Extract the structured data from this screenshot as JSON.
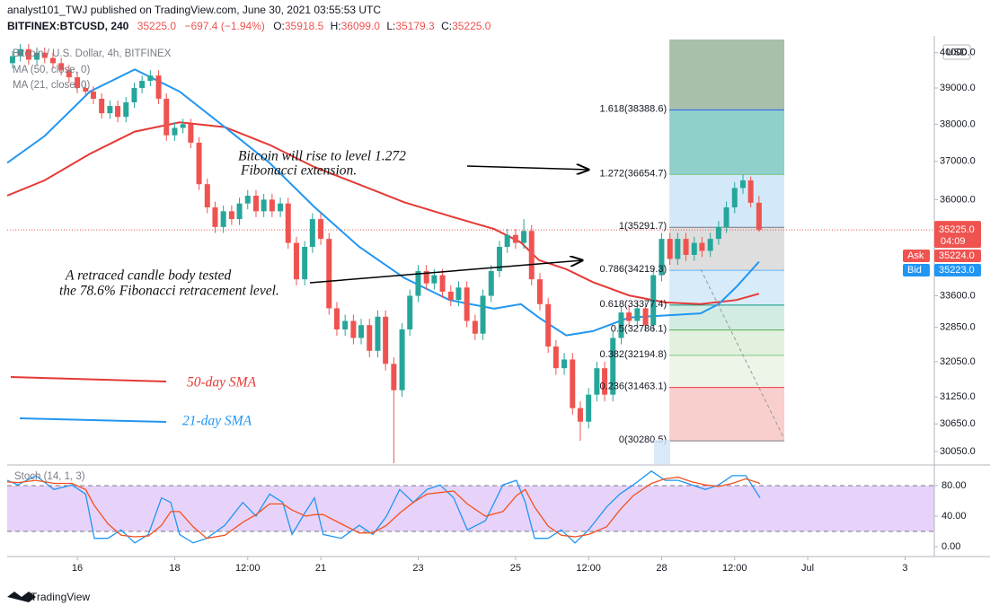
{
  "header": {
    "publisher": "analyst101_TWJ published on TradingView.com, June 30, 2021 03:55:53 UTC",
    "symbol": "BITFINEX:BTCUSD, 240",
    "last": "35225.0",
    "change": "−697.4 (−1.94%)",
    "ohlc": [
      {
        "key": "O:",
        "value": "35918.5"
      },
      {
        "key": "H:",
        "value": "36099.0"
      },
      {
        "key": "L:",
        "value": "35179.3"
      },
      {
        "key": "C:",
        "value": "35225.0"
      }
    ]
  },
  "legend": {
    "title": "Bitcoin / U.S. Dollar, 4h, BITFINEX",
    "ma50": "MA (50, close, 0)",
    "ma21": "MA (21, close, 0)"
  },
  "footer": "TradingView",
  "chart_data": {
    "type": "candlestick",
    "log_scale": true,
    "up_color": "#26a69a",
    "down_color": "#ef5350",
    "xlim": [
      14.56,
      33.6
    ],
    "xticks": [
      16,
      18,
      {
        "value": 19.5,
        "label": "12:00"
      },
      21,
      23,
      25,
      {
        "value": 26.5,
        "label": "12:00"
      },
      28,
      {
        "value": 29.5,
        "label": "12:00"
      },
      {
        "value": 31,
        "label": "Jul"
      },
      {
        "value": 33,
        "label": "3"
      }
    ],
    "ylim": [
      29780,
      40380
    ],
    "yticks": [
      {
        "value": 40000,
        "label": "40000.0"
      },
      {
        "value": 39000,
        "label": "39000.0"
      },
      {
        "value": 38000,
        "label": "38000.0"
      },
      {
        "value": 37000,
        "label": "37000.0"
      },
      {
        "value": 36000,
        "label": "36000.0"
      },
      {
        "value": 33600,
        "label": "33600.0"
      },
      {
        "value": 32850,
        "label": "32850.0"
      },
      {
        "value": 32050,
        "label": "32050.0"
      },
      {
        "value": 31250,
        "label": "31250.0"
      },
      {
        "value": 30650,
        "label": "30650.0"
      },
      {
        "value": 30050,
        "label": "30050.0"
      }
    ],
    "currency": "USD",
    "x": [
      14.67,
      14.83,
      15,
      15.17,
      15.33,
      15.5,
      15.67,
      15.83,
      16,
      16.17,
      16.33,
      16.5,
      16.67,
      16.83,
      17,
      17.17,
      17.33,
      17.5,
      17.67,
      17.83,
      18,
      18.17,
      18.33,
      18.5,
      18.67,
      18.83,
      19,
      19.17,
      19.33,
      19.5,
      19.67,
      19.83,
      20,
      20.17,
      20.33,
      20.5,
      20.67,
      20.83,
      21,
      21.17,
      21.33,
      21.5,
      21.67,
      21.83,
      22,
      22.17,
      22.33,
      22.5,
      22.67,
      22.83,
      23,
      23.17,
      23.33,
      23.5,
      23.67,
      23.83,
      24,
      24.17,
      24.33,
      24.5,
      24.67,
      24.83,
      25,
      25.17,
      25.33,
      25.5,
      25.67,
      25.83,
      26,
      26.17,
      26.33,
      26.5,
      26.67,
      26.83,
      27,
      27.17,
      27.33,
      27.5,
      27.67,
      27.83,
      28,
      28.17,
      28.33,
      28.5,
      28.67,
      28.83,
      29,
      29.17,
      29.33,
      29.5,
      29.67,
      29.83,
      30
    ],
    "open": [
      39700,
      39900,
      40100,
      39800,
      40000,
      39850,
      39700,
      39500,
      39300,
      39000,
      38900,
      38700,
      38300,
      38500,
      38200,
      38600,
      39000,
      39200,
      39350,
      38700,
      37700,
      37900,
      38000,
      37500,
      36400,
      35800,
      35300,
      35700,
      35500,
      35900,
      36100,
      35700,
      36000,
      35700,
      35900,
      34900,
      34000,
      34800,
      35500,
      35000,
      33300,
      32800,
      33000,
      32600,
      32900,
      32300,
      33100,
      32000,
      31400,
      32800,
      33600,
      34200,
      33900,
      34100,
      33700,
      33500,
      33800,
      33000,
      32700,
      33600,
      34200,
      34800,
      35100,
      34900,
      35200,
      34000,
      33400,
      32400,
      31900,
      32100,
      31000,
      30700,
      31300,
      31900,
      31300,
      32600,
      33200,
      33000,
      33300,
      32900,
      34100,
      35000,
      34500,
      35000,
      34600,
      34900,
      34700,
      35000,
      35300,
      35800,
      36300,
      36500,
      35918.5
    ],
    "high": [
      40050,
      40250,
      40250,
      40150,
      40150,
      40000,
      39850,
      39650,
      39450,
      39150,
      39050,
      38850,
      38650,
      38650,
      38750,
      39150,
      39350,
      39500,
      39500,
      38850,
      38050,
      38150,
      38150,
      37650,
      36550,
      35950,
      35850,
      35850,
      36050,
      36250,
      36250,
      36150,
      36150,
      36050,
      36050,
      35050,
      34950,
      35650,
      35650,
      35150,
      33450,
      33150,
      33150,
      33050,
      33050,
      33250,
      33250,
      32150,
      32950,
      33750,
      34350,
      34350,
      34250,
      34250,
      33850,
      33950,
      33950,
      33150,
      33750,
      34350,
      34950,
      35250,
      35250,
      35500,
      35350,
      34150,
      33550,
      32550,
      32250,
      32250,
      31150,
      31450,
      32050,
      32050,
      32750,
      33350,
      33350,
      33450,
      33450,
      34250,
      35150,
      35150,
      35150,
      35150,
      35050,
      35050,
      35150,
      35450,
      35950,
      36450,
      36650,
      36600,
      36099
    ],
    "low": [
      39550,
      39750,
      39650,
      39650,
      39700,
      39550,
      39350,
      39150,
      38850,
      38750,
      38550,
      38150,
      38150,
      38050,
      38050,
      38450,
      38850,
      39050,
      38550,
      37550,
      37550,
      37750,
      37350,
      36250,
      35650,
      35150,
      35150,
      35350,
      35350,
      35750,
      35550,
      35550,
      35550,
      35550,
      34750,
      33850,
      33850,
      34650,
      34850,
      33150,
      32650,
      32650,
      32450,
      32450,
      32150,
      32150,
      31850,
      29800,
      31250,
      32650,
      33450,
      33750,
      33750,
      33550,
      33350,
      33350,
      32850,
      32550,
      32550,
      33450,
      34050,
      34650,
      34750,
      34750,
      33850,
      33250,
      32250,
      31750,
      31750,
      30850,
      30280.5,
      30550,
      31150,
      31150,
      31150,
      32450,
      32850,
      32850,
      32750,
      32750,
      33950,
      34350,
      34350,
      34450,
      34450,
      34550,
      34550,
      34850,
      35150,
      35650,
      36150,
      35800,
      35179.3
    ],
    "close": [
      39900,
      40100,
      39800,
      40000,
      39850,
      39700,
      39500,
      39300,
      39000,
      38900,
      38700,
      38300,
      38500,
      38200,
      38600,
      39000,
      39200,
      39350,
      38700,
      37700,
      37900,
      38000,
      37500,
      36400,
      35800,
      35300,
      35700,
      35500,
      35900,
      36100,
      35700,
      36000,
      35700,
      35900,
      34900,
      34000,
      34800,
      35500,
      35000,
      33300,
      32800,
      33000,
      32600,
      32900,
      32300,
      33100,
      32000,
      31400,
      32800,
      33600,
      34200,
      33900,
      34100,
      33700,
      33500,
      33800,
      33000,
      32700,
      33600,
      34200,
      34800,
      35100,
      34900,
      35200,
      34000,
      33400,
      32400,
      31900,
      32100,
      31000,
      30700,
      31300,
      31900,
      31300,
      32600,
      33200,
      33000,
      33300,
      32900,
      34100,
      35000,
      34500,
      35000,
      34600,
      34900,
      34700,
      35000,
      35300,
      35800,
      36300,
      36500,
      35918.5,
      35225
    ],
    "series": [
      {
        "name": "50-day SMA",
        "color": "#e53935",
        "x": [
          14.56,
          15.33,
          16.26,
          17.18,
          18.1,
          19.03,
          19.95,
          20.87,
          21.79,
          22.72,
          23.64,
          24.56,
          25.11,
          25.48,
          26.04,
          26.59,
          27.33,
          28.07,
          28.8,
          29.54,
          30
        ],
        "values": [
          36100,
          36500,
          37200,
          37800,
          38050,
          37920,
          37440,
          36850,
          36390,
          35930,
          35580,
          35250,
          34910,
          34470,
          34250,
          33930,
          33610,
          33440,
          33400,
          33500,
          33650
        ]
      },
      {
        "name": "21-day SMA",
        "color": "#2196f3",
        "x": [
          14.56,
          15.33,
          16.26,
          17.18,
          18.1,
          19.03,
          19.95,
          20.87,
          21.79,
          22.72,
          23.64,
          24.56,
          25.11,
          25.48,
          26.04,
          26.59,
          27.33,
          28.25,
          28.8,
          29.17,
          29.54,
          30
        ],
        "values": [
          36960,
          37680,
          38900,
          39520,
          38900,
          37920,
          36960,
          35810,
          34800,
          34030,
          33500,
          33290,
          33400,
          33080,
          32660,
          32760,
          33080,
          33140,
          33180,
          33400,
          33820,
          34430
        ]
      }
    ],
    "fib": {
      "x": [
        28.16,
        30.52
      ],
      "levels": [
        {
          "price": 30280.5,
          "label": "0(30280.5)",
          "color": "#787b86",
          "band_color": "#f8cfcc"
        },
        {
          "price": 31463.1,
          "label": "0.236(31463.1)",
          "color": "#f23645",
          "band_color": "#edf5e8"
        },
        {
          "price": 32194.8,
          "label": "0.382(32194.8)",
          "color": "#81c784",
          "band_color": "#e1f1dd"
        },
        {
          "price": 32786.1,
          "label": "0.5(32786.1)",
          "color": "#4caf50",
          "band_color": "#d3ece3"
        },
        {
          "price": 33377.4,
          "label": "0.618(33377.4)",
          "color": "#089981",
          "band_color": "#d7ebf8"
        },
        {
          "price": 34219.3,
          "label": "0.786(34219.3)",
          "color": "#64b5f6",
          "band_color": "#dedede"
        },
        {
          "price": 35291.7,
          "label": "1(35291.7)",
          "color": "#787b86",
          "band_color": "#d3e9f9"
        },
        {
          "price": 36654.7,
          "label": "1.272(36654.7)",
          "color": "#81c784",
          "band_color": "#91cfca"
        },
        {
          "price": 38388.6,
          "label": "1.618(38388.6)",
          "color": "#2962ff",
          "band_color": "#a8bfa9"
        }
      ]
    },
    "annotations": [
      {
        "lines": [
          "Bitcoin will rise to level 1.272",
          "Fibonacci extension."
        ]
      },
      {
        "lines": [
          "A  retraced candle body tested",
          "the 78.6% Fibonacci retracement level."
        ]
      }
    ],
    "price_labels": {
      "last": {
        "value": 35225,
        "label": "35225.0"
      },
      "countdown": "04:09",
      "color": "#ef5350",
      "ask": {
        "name": "Ask",
        "value": 35224,
        "label": "35224.0",
        "color": "#ef5350"
      },
      "bid": {
        "name": "Bid",
        "value": 35223,
        "label": "35223.0",
        "color": "#2196f3"
      }
    },
    "stoch": {
      "type": "line",
      "title": "Stoch (14, 1, 3)",
      "ylim": [
        -12.9,
        104.7
      ],
      "yticks": [
        {
          "value": 80,
          "label": "80.00"
        },
        {
          "value": 40,
          "label": "40.00"
        },
        {
          "value": 0,
          "label": "0.00"
        }
      ],
      "bands": [
        20,
        80
      ],
      "band_color": "#e1c8f7",
      "x": [
        14.56,
        14.78,
        15.15,
        15.52,
        15.89,
        16.17,
        16.35,
        16.63,
        16.9,
        17.18,
        17.46,
        17.73,
        17.92,
        18.1,
        18.38,
        18.66,
        19.03,
        19.4,
        19.67,
        19.95,
        20.22,
        20.41,
        20.69,
        20.87,
        21.05,
        21.42,
        21.79,
        22.07,
        22.35,
        22.62,
        22.9,
        23.18,
        23.45,
        23.73,
        24.01,
        24.38,
        24.74,
        25.02,
        25.2,
        25.39,
        25.67,
        25.94,
        26.22,
        26.5,
        26.87,
        27.14,
        27.42,
        27.79,
        28.07,
        28.34,
        28.62,
        28.9,
        29.17,
        29.45,
        29.73,
        30.02
      ],
      "series": [
        {
          "color": "#2196f3",
          "values": [
            87,
            81,
            93,
            75,
            81,
            69,
            11,
            11,
            22,
            5,
            16,
            64,
            58,
            16,
            5,
            11,
            28,
            58,
            40,
            69,
            58,
            16,
            46,
            64,
            16,
            11,
            28,
            16,
            40,
            75,
            58,
            75,
            81,
            64,
            22,
            34,
            81,
            87,
            58,
            11,
            11,
            22,
            5,
            22,
            52,
            69,
            81,
            99,
            87,
            87,
            81,
            75,
            81,
            93,
            93,
            64
          ]
        },
        {
          "color": "#f4511e",
          "values": [
            85,
            84,
            87,
            83,
            83,
            75,
            54,
            30,
            15,
            13,
            14,
            28,
            46,
            46,
            26,
            11,
            15,
            32,
            42,
            56,
            56,
            48,
            40,
            42,
            42,
            30,
            18,
            18,
            28,
            44,
            58,
            69,
            71,
            73,
            56,
            40,
            46,
            67,
            75,
            52,
            27,
            15,
            13,
            16,
            26,
            48,
            67,
            83,
            89,
            91,
            85,
            81,
            79,
            83,
            89,
            83
          ]
        }
      ]
    }
  }
}
